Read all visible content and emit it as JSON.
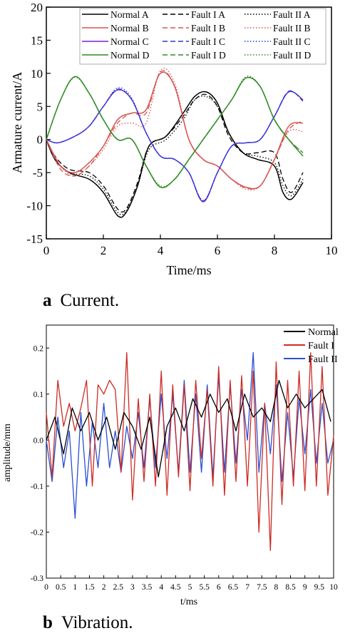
{
  "captions": {
    "a": {
      "letter": "a",
      "text": "Current."
    },
    "b": {
      "letter": "b",
      "text": "Vibration."
    }
  },
  "chart_data": [
    {
      "type": "line",
      "xlabel": "Time/ms",
      "ylabel": "Armature current/A",
      "xlim": [
        0,
        10
      ],
      "ylim": [
        -15,
        20
      ],
      "xticks": [
        0,
        2,
        4,
        6,
        8,
        10
      ],
      "yticks": [
        -15,
        -10,
        -5,
        0,
        5,
        10,
        15,
        20
      ],
      "legend_position": "top",
      "grid": false,
      "colors": {
        "A": "#000000",
        "B": "#d9534f",
        "C": "#7b1fd4",
        "D": "#2e8b22",
        "C_dashed": "#1f3fd9"
      },
      "series": [
        {
          "name": "Normal A",
          "phase": "A",
          "style": "solid",
          "x": [
            0,
            0.3,
            0.8,
            1.5,
            2.0,
            2.5,
            2.8,
            3.2,
            3.6,
            4.2,
            4.8,
            5.2,
            5.6,
            6.0,
            6.4,
            6.9,
            7.4,
            8.0,
            8.3,
            8.6,
            9.0
          ],
          "y": [
            0,
            -3,
            -5,
            -6,
            -8,
            -11.5,
            -11,
            -7,
            -1,
            0.5,
            4,
            6.5,
            7.2,
            5.5,
            1,
            -2,
            -3,
            -4,
            -8,
            -9,
            -6.5
          ]
        },
        {
          "name": "Fault I A",
          "phase": "A",
          "style": "dashed",
          "x": [
            0,
            0.3,
            0.8,
            1.5,
            2.0,
            2.5,
            2.8,
            3.2,
            3.6,
            4.2,
            4.8,
            5.2,
            5.6,
            6.0,
            6.4,
            6.9,
            7.4,
            8.0,
            8.3,
            8.6,
            9.0
          ],
          "y": [
            0,
            -2.5,
            -4.5,
            -5,
            -7,
            -10.5,
            -10.5,
            -6.5,
            -1,
            0.5,
            3.5,
            6,
            6.8,
            5,
            0.5,
            -2,
            -2,
            -2,
            -6,
            -8,
            -5
          ]
        },
        {
          "name": "Fault II A",
          "phase": "A",
          "style": "dotted",
          "x": [
            0,
            0.3,
            0.8,
            1.5,
            2.0,
            2.5,
            2.8,
            3.2,
            3.6,
            4.2,
            4.8,
            5.2,
            5.6,
            6.0,
            6.4,
            6.9,
            7.4,
            8.0,
            8.3,
            8.6,
            9.0
          ],
          "y": [
            0,
            -3,
            -5,
            -5.5,
            -7.5,
            -11,
            -10.8,
            -7,
            -1.5,
            0,
            3,
            6,
            6.5,
            5,
            1,
            -2,
            -2.5,
            -3.5,
            -7,
            -8.5,
            -6
          ]
        },
        {
          "name": "Normal B",
          "phase": "B",
          "style": "solid",
          "x": [
            0,
            0.5,
            1.0,
            1.5,
            2.0,
            2.5,
            3.0,
            3.5,
            4.0,
            4.5,
            5.0,
            5.5,
            6.0,
            6.5,
            7.0,
            7.5,
            8.0,
            8.5,
            9.0
          ],
          "y": [
            0,
            -4,
            -5,
            -3.5,
            -1,
            3,
            4,
            4.5,
            10,
            8,
            0,
            -3,
            -4,
            -6,
            -7.2,
            -7,
            -3,
            2,
            2.5
          ]
        },
        {
          "name": "Fault I B",
          "phase": "B",
          "style": "dashed",
          "x": [
            0,
            0.5,
            1.0,
            1.5,
            2.0,
            2.5,
            3.0,
            3.5,
            4.0,
            4.5,
            5.0,
            5.5,
            6.0,
            6.5,
            7.0,
            7.5,
            8.0,
            8.5,
            9.0
          ],
          "y": [
            0,
            -4.5,
            -5.5,
            -4,
            -1,
            2.5,
            4,
            4,
            10.2,
            8,
            0,
            -3,
            -4,
            -6,
            -7.3,
            -7,
            -3,
            1.5,
            2.8
          ]
        },
        {
          "name": "Fault II B",
          "phase": "B",
          "style": "dotted",
          "x": [
            0,
            0.5,
            1.0,
            1.5,
            2.0,
            2.5,
            3.0,
            3.5,
            4.0,
            4.5,
            5.0,
            5.5,
            6.0,
            6.5,
            7.0,
            7.5,
            8.0,
            8.5,
            9.0
          ],
          "y": [
            0,
            -4,
            -5.5,
            -4,
            -1.5,
            2,
            2.5,
            2.5,
            10.4,
            8.5,
            0,
            -3,
            -4,
            -6,
            -7.5,
            -7,
            -3,
            1.2,
            1.2
          ]
        },
        {
          "name": "Normal C",
          "phase": "C",
          "style": "solid",
          "x": [
            0,
            0.4,
            1.0,
            1.5,
            2.0,
            2.5,
            3.0,
            3.5,
            4.0,
            4.5,
            5.0,
            5.5,
            6.0,
            6.5,
            7.0,
            7.5,
            8.0,
            8.5,
            9.0
          ],
          "y": [
            0,
            -0.5,
            0.5,
            2,
            5,
            7.5,
            6,
            1,
            -2.5,
            -3,
            -5,
            -9.4,
            -5,
            -1,
            -0.5,
            0,
            3.5,
            7.2,
            6
          ]
        },
        {
          "name": "Fault I C",
          "phase": "C",
          "style": "dashed",
          "x": [
            0,
            0.4,
            1.0,
            1.5,
            2.0,
            2.5,
            3.0,
            3.5,
            4.0,
            4.5,
            5.0,
            5.5,
            6.0,
            6.5,
            7.0,
            7.5,
            8.0,
            8.5,
            9.0
          ],
          "y": [
            0,
            -0.5,
            0.5,
            2,
            5,
            7.6,
            6,
            1,
            -2.5,
            -3,
            -5,
            -9.3,
            -5,
            -1,
            -0.5,
            0,
            3.5,
            7.3,
            5.8
          ]
        },
        {
          "name": "Fault II C",
          "phase": "C",
          "style": "dotted",
          "x": [
            0,
            0.4,
            1.0,
            1.5,
            2.0,
            2.5,
            3.0,
            3.5,
            4.0,
            4.5,
            5.0,
            5.5,
            6.0,
            6.5,
            7.0,
            7.5,
            8.0,
            8.5,
            9.0
          ],
          "y": [
            0,
            -0.5,
            0.5,
            2,
            5,
            7.8,
            6.2,
            1,
            -2.5,
            -3,
            -5,
            -9.2,
            -5,
            -1,
            -0.5,
            0,
            3.5,
            7.2,
            6
          ]
        },
        {
          "name": "Normal D",
          "phase": "D",
          "style": "solid",
          "x": [
            0,
            0.5,
            1.0,
            1.5,
            2.0,
            2.5,
            3.0,
            3.5,
            4.0,
            4.5,
            5.0,
            5.5,
            6.0,
            6.5,
            7.0,
            7.5,
            8.0,
            8.5,
            9.0
          ],
          "y": [
            0,
            6,
            9.5,
            7,
            3,
            0,
            0,
            -4,
            -7.2,
            -6,
            -3,
            0,
            3,
            6,
            9.3,
            8,
            3,
            0,
            -2.5
          ]
        },
        {
          "name": "Fault I D",
          "phase": "D",
          "style": "dashed",
          "x": [
            0,
            0.5,
            1.0,
            1.5,
            2.0,
            2.5,
            3.0,
            3.5,
            4.0,
            4.5,
            5.0,
            5.5,
            6.0,
            6.5,
            7.0,
            7.5,
            8.0,
            8.5,
            9.0
          ],
          "y": [
            0,
            6,
            9.5,
            7,
            3,
            0,
            0,
            -4,
            -7.2,
            -6,
            -3,
            0,
            3,
            6,
            9.3,
            8,
            3,
            0,
            -2
          ]
        },
        {
          "name": "Fault II D",
          "phase": "D",
          "style": "dotted",
          "x": [
            0,
            0.5,
            1.0,
            1.5,
            2.0,
            2.5,
            3.0,
            3.5,
            4.0,
            4.5,
            5.0,
            5.5,
            6.0,
            6.5,
            7.0,
            7.5,
            8.0,
            8.5,
            9.0
          ],
          "y": [
            0,
            6,
            9.4,
            7,
            3,
            0,
            0,
            -4,
            -7,
            -6,
            -3,
            0,
            3,
            6,
            9.5,
            8,
            3,
            0,
            -2
          ]
        }
      ]
    },
    {
      "type": "line",
      "xlabel": "t/ms",
      "ylabel": "amplitude/mm",
      "xlim": [
        0,
        10
      ],
      "ylim": [
        -0.3,
        0.25
      ],
      "xticks": [
        0,
        0.5,
        1,
        1.5,
        2,
        2.5,
        3,
        3.5,
        4,
        4.5,
        5,
        5.5,
        6,
        6.5,
        7,
        7.5,
        8,
        8.5,
        9,
        9.5,
        10
      ],
      "yticks": [
        -0.3,
        -0.2,
        -0.1,
        0.0,
        0.1,
        0.2
      ],
      "legend_position": "top-right",
      "grid": false,
      "series": [
        {
          "name": "Normal",
          "color": "#000000",
          "x": [
            0,
            0.3,
            0.6,
            0.9,
            1.2,
            1.5,
            1.8,
            2.1,
            2.4,
            2.7,
            3.0,
            3.3,
            3.6,
            3.9,
            4.2,
            4.5,
            4.8,
            5.1,
            5.4,
            5.7,
            6.0,
            6.3,
            6.6,
            6.9,
            7.2,
            7.5,
            7.8,
            8.1,
            8.4,
            8.7,
            9.0,
            9.3,
            9.6,
            9.9
          ],
          "y": [
            0,
            0.05,
            -0.03,
            0.07,
            0.02,
            0.06,
            0.0,
            0.05,
            -0.02,
            0.06,
            0.03,
            -0.02,
            0.05,
            -0.08,
            0.03,
            0.07,
            0.02,
            0.09,
            0.05,
            0.1,
            0.06,
            0.09,
            0.02,
            0.1,
            0.05,
            0.07,
            0.04,
            0.13,
            0.07,
            0.1,
            0.07,
            0.09,
            0.11,
            0.04
          ]
        },
        {
          "name": "Fault I",
          "color": "#cc2b24",
          "x": [
            0,
            0.2,
            0.4,
            0.6,
            0.8,
            1.0,
            1.2,
            1.4,
            1.6,
            1.8,
            2.0,
            2.2,
            2.4,
            2.6,
            2.8,
            3.0,
            3.2,
            3.4,
            3.6,
            3.8,
            4.0,
            4.2,
            4.4,
            4.6,
            4.8,
            5.0,
            5.2,
            5.4,
            5.6,
            5.8,
            6.0,
            6.2,
            6.4,
            6.6,
            6.8,
            7.0,
            7.2,
            7.4,
            7.6,
            7.8,
            8.0,
            8.2,
            8.4,
            8.6,
            8.8,
            9.0,
            9.2,
            9.4,
            9.6,
            9.8,
            10.0
          ],
          "y": [
            0.06,
            -0.08,
            0.13,
            0.03,
            0.08,
            0.02,
            0.07,
            0.13,
            -0.1,
            0.12,
            0.1,
            0.13,
            0.11,
            -0.07,
            0.19,
            -0.13,
            0.09,
            -0.09,
            0.1,
            -0.1,
            0.15,
            -0.12,
            0.12,
            -0.08,
            0.12,
            -0.11,
            0.13,
            -0.04,
            0.11,
            -0.1,
            0.16,
            -0.12,
            0.13,
            -0.09,
            0.14,
            -0.1,
            0.15,
            -0.2,
            0.08,
            -0.24,
            0.17,
            -0.14,
            0.13,
            -0.1,
            0.15,
            -0.11,
            0.19,
            -0.1,
            0.16,
            -0.12,
            0.01
          ]
        },
        {
          "name": "Fault II",
          "color": "#2a4fd1",
          "x": [
            0,
            0.2,
            0.4,
            0.6,
            0.8,
            1.0,
            1.2,
            1.4,
            1.6,
            1.8,
            2.0,
            2.2,
            2.4,
            2.6,
            2.8,
            3.0,
            3.2,
            3.4,
            3.6,
            3.8,
            4.0,
            4.2,
            4.4,
            4.6,
            4.8,
            5.0,
            5.2,
            5.4,
            5.6,
            5.8,
            6.0,
            6.2,
            6.4,
            6.6,
            6.8,
            7.0,
            7.2,
            7.4,
            7.6,
            7.8,
            8.0,
            8.2,
            8.4,
            8.6,
            8.8,
            9.0,
            9.2,
            9.4,
            9.6,
            9.8,
            10.0
          ],
          "y": [
            0,
            -0.09,
            0.05,
            -0.06,
            0.02,
            -0.17,
            0.06,
            -0.1,
            0.04,
            -0.06,
            0.08,
            -0.06,
            0.02,
            -0.07,
            0.03,
            -0.04,
            0.06,
            -0.06,
            0.09,
            -0.06,
            0.1,
            -0.04,
            0.1,
            -0.07,
            0.13,
            -0.07,
            0.1,
            -0.07,
            0.12,
            -0.08,
            0.14,
            -0.07,
            0.12,
            -0.05,
            0.11,
            0.0,
            0.19,
            -0.07,
            0.08,
            -0.03,
            0.12,
            -0.09,
            0.06,
            -0.08,
            0.09,
            -0.03,
            0.11,
            -0.05,
            0.08,
            -0.05,
            0.0
          ]
        }
      ]
    }
  ]
}
